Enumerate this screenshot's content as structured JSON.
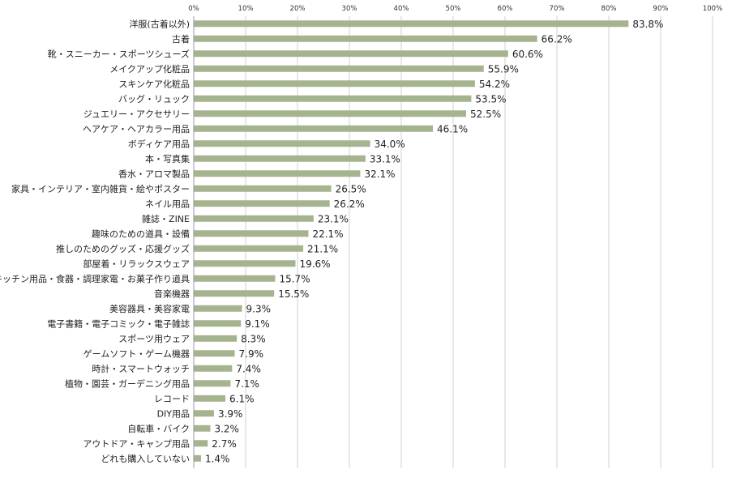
{
  "chart_data": {
    "type": "bar",
    "orientation": "horizontal",
    "title": "",
    "xlabel": "",
    "ylabel": "",
    "xlim": [
      0,
      100
    ],
    "x_ticks": [
      "0%",
      "10%",
      "20%",
      "30%",
      "40%",
      "50%",
      "60%",
      "70%",
      "80%",
      "90%",
      "100%"
    ],
    "grid": true,
    "bar_color": "#a5b48f",
    "categories": [
      "洋服(古着以外)",
      "古着",
      "靴・スニーカー・スポーツシューズ",
      "メイクアップ化粧品",
      "スキンケア化粧品",
      "バッグ・リュック",
      "ジュエリー・アクセサリー",
      "ヘアケア・ヘアカラー用品",
      "ボディケア用品",
      "本・写真集",
      "香水・アロマ製品",
      "家具・インテリア・室内雑貨・絵やポスター",
      "ネイル用品",
      "雑誌・ZINE",
      "趣味のための道具・設備",
      "推しのためのグッズ・応援グッズ",
      "部屋着・リラックスウェア",
      "キッチン用品・食器・調理家電・お菓子作り道具",
      "音楽機器",
      "美容器具・美容家電",
      "電子書籍・電子コミック・電子雑誌",
      "スポーツ用ウェア",
      "ゲームソフト・ゲーム機器",
      "時計・スマートウォッチ",
      "植物・園芸・ガーデニング用品",
      "レコード",
      "DIY用品",
      "自転車・バイク",
      "アウトドア・キャンプ用品",
      "どれも購入していない"
    ],
    "values": [
      83.8,
      66.2,
      60.6,
      55.9,
      54.2,
      53.5,
      52.5,
      46.1,
      34.0,
      33.1,
      32.1,
      26.5,
      26.2,
      23.1,
      22.1,
      21.1,
      19.6,
      15.7,
      15.5,
      9.3,
      9.1,
      8.3,
      7.9,
      7.4,
      7.1,
      6.1,
      3.9,
      3.2,
      2.7,
      1.4
    ],
    "value_labels": [
      "83.8%",
      "66.2%",
      "60.6%",
      "55.9%",
      "54.2%",
      "53.5%",
      "52.5%",
      "46.1%",
      "34.0%",
      "33.1%",
      "32.1%",
      "26.5%",
      "26.2%",
      "23.1%",
      "22.1%",
      "21.1%",
      "19.6%",
      "15.7%",
      "15.5%",
      "9.3%",
      "9.1%",
      "8.3%",
      "7.9%",
      "7.4%",
      "7.1%",
      "6.1%",
      "3.9%",
      "3.2%",
      "2.7%",
      "1.4%"
    ]
  }
}
